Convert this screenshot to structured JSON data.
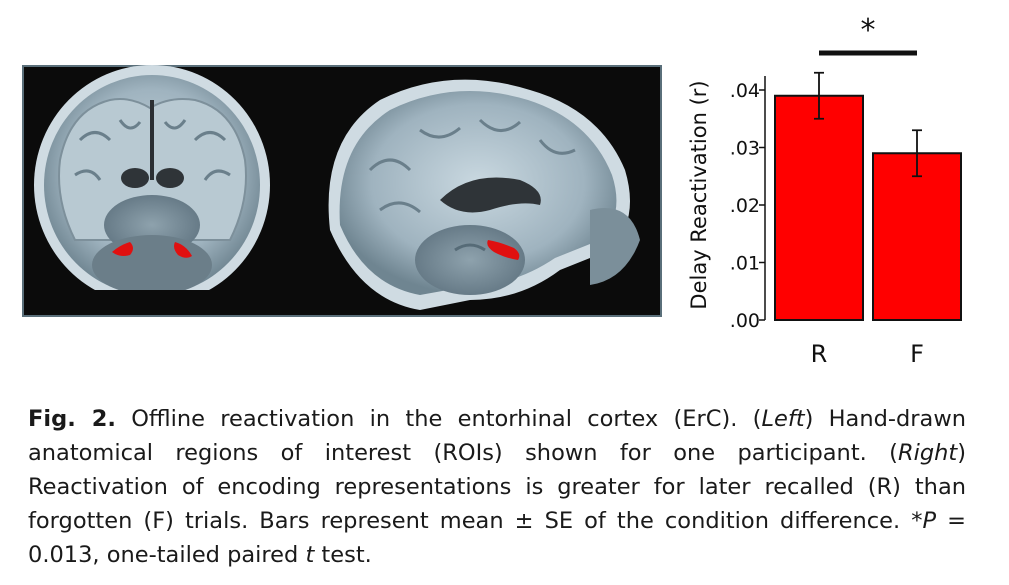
{
  "figure": {
    "brain_images": {
      "left_view": "coronal-mri-slice",
      "right_view": "sagittal-mri-slice",
      "roi_color": "#e01010"
    }
  },
  "chart_data": {
    "type": "bar",
    "categories": [
      "R",
      "F"
    ],
    "values": [
      0.039,
      0.029
    ],
    "errors": [
      0.004,
      0.004
    ],
    "ylabel": "Delay Reactivation (r)",
    "xlabel": "",
    "ylim": [
      0,
      0.04
    ],
    "yticks": [
      ".00",
      ".01",
      ".02",
      ".03",
      ".04"
    ],
    "ytick_values": [
      0,
      0.01,
      0.02,
      0.03,
      0.04
    ],
    "bar_color": "#ff0000",
    "significance_marker": "*",
    "grid": false
  },
  "caption": {
    "fig_label": "Fig. 2.",
    "p1": " Offline reactivation in the entorhinal cortex (ErC). (",
    "left": "Left",
    "p2": ") Hand-drawn anatomical regions of interest (ROIs) shown for one participant. (",
    "right": "Right",
    "p3": ") Reactivation of encoding representations is greater for later recalled (R) than forgotten (F) trials. Bars represent mean ± SE of the condition difference. *",
    "p_symbol": "P",
    "p4": " = 0.013, one-tailed paired ",
    "t_symbol": "t",
    "p5": " test."
  }
}
